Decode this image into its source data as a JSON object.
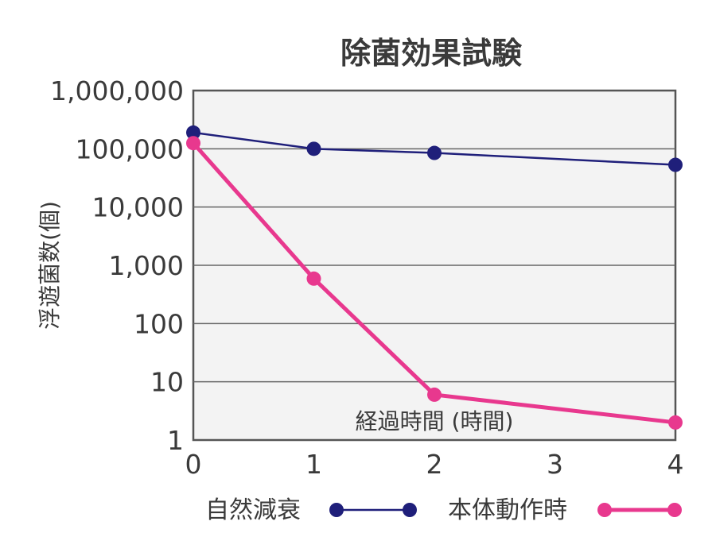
{
  "chart_data": {
    "type": "line",
    "title": "除菌効果試験",
    "xlabel": "経過時間 (時間)",
    "ylabel": "浮遊菌数(個)",
    "y_scale": "log",
    "ylim": [
      1,
      1000000
    ],
    "xlim": [
      0,
      4
    ],
    "x_ticks": [
      "0",
      "1",
      "2",
      "3",
      "4"
    ],
    "y_ticks": [
      {
        "value": 1,
        "label": "1"
      },
      {
        "value": 10,
        "label": "10"
      },
      {
        "value": 100,
        "label": "100"
      },
      {
        "value": 1000,
        "label": "1,000"
      },
      {
        "value": 10000,
        "label": "10,000"
      },
      {
        "value": 100000,
        "label": "100,000"
      },
      {
        "value": 1000000,
        "label": "1,000,000"
      }
    ],
    "grid": true,
    "legend_position": "bottom",
    "series": [
      {
        "name": "自然減衰",
        "color": "#1f1f7a",
        "x": [
          0,
          1,
          2,
          4
        ],
        "y": [
          190000,
          100000,
          85000,
          53000
        ]
      },
      {
        "name": "本体動作時",
        "color": "#e8388e",
        "x": [
          0,
          1,
          2,
          4
        ],
        "y": [
          125000,
          590,
          6,
          2
        ]
      }
    ]
  }
}
